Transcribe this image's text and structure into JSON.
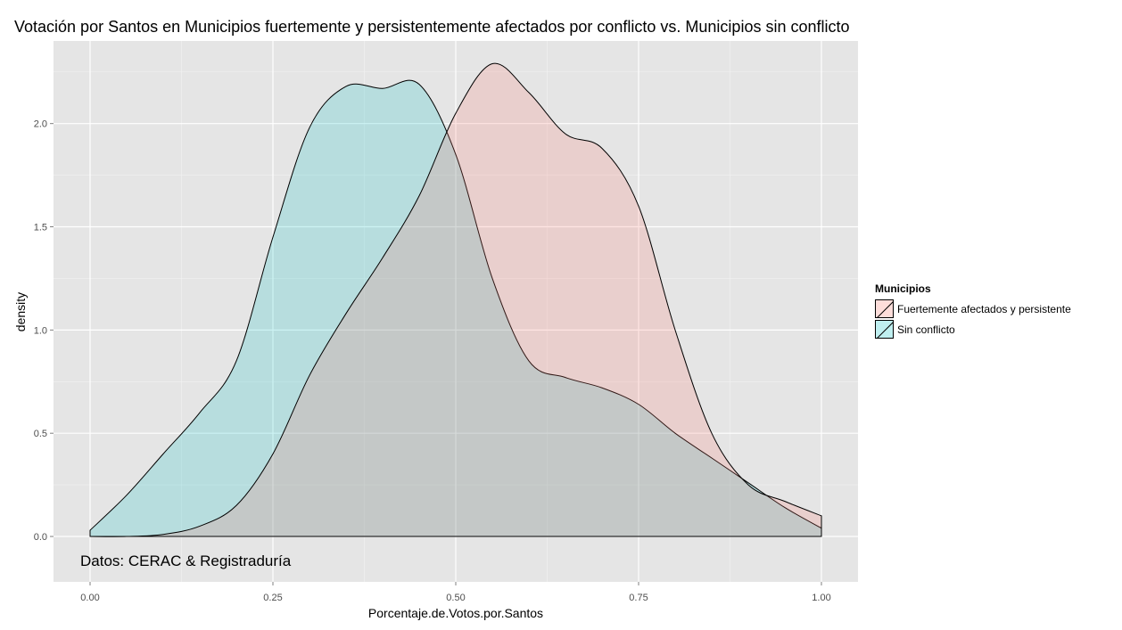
{
  "chart_data": {
    "type": "area",
    "title": "Votación por Santos en Municipios fuertemente y persistentemente afectados por conflicto vs. Municipios sin conflicto",
    "xlabel": "Porcentaje.de.Votos.por.Santos",
    "ylabel": "density",
    "xlim": [
      -0.05,
      1.05
    ],
    "ylim": [
      -0.22,
      2.4
    ],
    "x_ticks": [
      0.0,
      0.25,
      0.5,
      0.75,
      1.0
    ],
    "x_tick_labels": [
      "0.00",
      "0.25",
      "0.50",
      "0.75",
      "1.00"
    ],
    "y_ticks": [
      0.0,
      0.5,
      1.0,
      1.5,
      2.0
    ],
    "y_tick_labels": [
      "0.0",
      "0.5",
      "1.0",
      "1.5",
      "2.0"
    ],
    "grid": true,
    "legend_title": "Municipios",
    "legend_position": "right",
    "annotation": "Datos: CERAC & Registraduría",
    "series": [
      {
        "name": "Sin conflicto",
        "color": "#00BFC4",
        "x": [
          0.0,
          0.05,
          0.1,
          0.15,
          0.2,
          0.25,
          0.3,
          0.35,
          0.4,
          0.45,
          0.5,
          0.55,
          0.6,
          0.65,
          0.7,
          0.75,
          0.8,
          0.85,
          0.9,
          0.95,
          1.0
        ],
        "y": [
          0.03,
          0.2,
          0.4,
          0.6,
          0.85,
          1.45,
          1.98,
          2.18,
          2.17,
          2.19,
          1.85,
          1.25,
          0.85,
          0.77,
          0.72,
          0.64,
          0.5,
          0.38,
          0.26,
          0.14,
          0.04
        ]
      },
      {
        "name": "Fuertemente afectados y persistente",
        "color": "#F8766D",
        "x": [
          0.0,
          0.05,
          0.1,
          0.15,
          0.2,
          0.25,
          0.3,
          0.35,
          0.4,
          0.45,
          0.5,
          0.55,
          0.6,
          0.65,
          0.7,
          0.75,
          0.8,
          0.85,
          0.9,
          0.95,
          1.0
        ],
        "y": [
          0.0,
          0.0,
          0.01,
          0.05,
          0.15,
          0.4,
          0.78,
          1.08,
          1.35,
          1.65,
          2.05,
          2.29,
          2.15,
          1.95,
          1.88,
          1.6,
          1.0,
          0.5,
          0.25,
          0.17,
          0.1
        ]
      }
    ]
  }
}
